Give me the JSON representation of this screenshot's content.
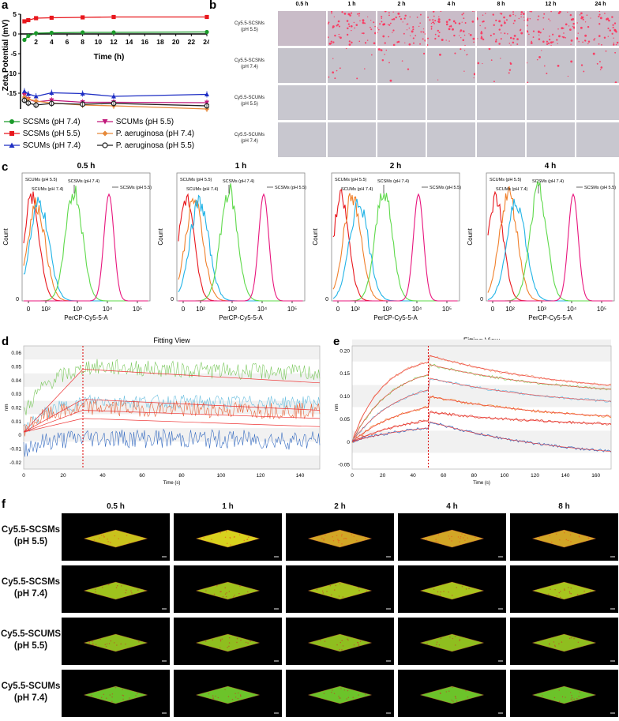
{
  "panels": {
    "a": "a",
    "b": "b",
    "c": "c",
    "d": "d",
    "e": "e",
    "f": "f"
  },
  "panel_a": {
    "ylabel": "Zeta Potential (mV)",
    "xlabel": "Time (h)",
    "yticks": [
      "5",
      "0",
      "-5",
      "-10",
      "-15",
      "-20",
      "-25"
    ],
    "xticks": [
      "2",
      "4",
      "6",
      "8",
      "10",
      "12",
      "14",
      "16",
      "18",
      "20",
      "22",
      "24"
    ],
    "legend": [
      {
        "label": "SCSMs (pH 7.4)",
        "color": "#1a9a2a",
        "marker": "circle"
      },
      {
        "label": "SCUMs (pH 5.5)",
        "color": "#c0187a",
        "marker": "triangle-down"
      },
      {
        "label": "SCSMs (pH 5.5)",
        "color": "#e8171d",
        "marker": "square"
      },
      {
        "label": "P. aeruginosa (pH 7.4)",
        "color": "#e6893a",
        "marker": "diamond"
      },
      {
        "label": "SCUMs (pH 7.4)",
        "color": "#1f2fc4",
        "marker": "triangle"
      },
      {
        "label": "P. aeruginosa (pH 5.5)",
        "color": "#222222",
        "marker": "open-circle"
      }
    ]
  },
  "panel_b": {
    "columns": [
      "0.5 h",
      "1 h",
      "2 h",
      "4 h",
      "8 h",
      "12 h",
      "24 h"
    ],
    "rows": [
      "Cy5.5-SCSMs\n(pH 5.5)",
      "Cy5.5-SCSMs\n(pH 7.4)",
      "Cy5.5-SCUMs\n(pH 5.5)",
      "Cy5.5-SCUMs\n(pH 7.4)"
    ]
  },
  "panel_c": {
    "times": [
      "0.5 h",
      "1 h",
      "2 h",
      "4 h"
    ],
    "ylabel": "Count",
    "xlabel": "PerCP-Cy5-5-A",
    "xticks": [
      "0",
      "10²",
      "10³",
      "10⁴",
      "10⁵"
    ],
    "ytick0": "0",
    "labels": [
      "SCUMs (pH 5.5)",
      "SCUMs (pH 7.4)",
      "SCSMs (pH 7.4)",
      "SCSMs (pH 5.5)"
    ]
  },
  "panel_d": {
    "title": "Fitting View",
    "ylabel": "nm",
    "xlabel": "Time (s)",
    "yticks": [
      "0.06",
      "0.05",
      "0.04",
      "0.03",
      "0.02",
      "0.01",
      "0",
      "-0.01",
      "-0.02"
    ],
    "xticks": [
      "0",
      "20",
      "40",
      "60",
      "80",
      "100",
      "120",
      "140"
    ]
  },
  "panel_e": {
    "title": "Fitting View",
    "ylabel": "nm",
    "xlabel": "Time (s)",
    "yticks": [
      "0.20",
      "0.15",
      "0.10",
      "0.05",
      "0",
      "-0.05"
    ],
    "xticks": [
      "0",
      "20",
      "40",
      "60",
      "80",
      "100",
      "120",
      "140",
      "160"
    ]
  },
  "panel_f": {
    "columns": [
      "0.5 h",
      "1 h",
      "2 h",
      "4 h",
      "8 h"
    ],
    "rows": [
      "Cy5.5-SCSMs\n(pH 5.5)",
      "Cy5.5-SCSMs\n(pH 7.4)",
      "Cy5.5-SCUMS\n(pH 5.5)",
      "Cy5.5-SCUMs\n(pH 7.4)"
    ]
  },
  "colors": {
    "green": "#2ec42e",
    "red": "#e8171d",
    "blue": "#1f2fc4",
    "magenta": "#e8157d",
    "orange": "#f07f2a",
    "cyan": "#21b3e6"
  }
}
